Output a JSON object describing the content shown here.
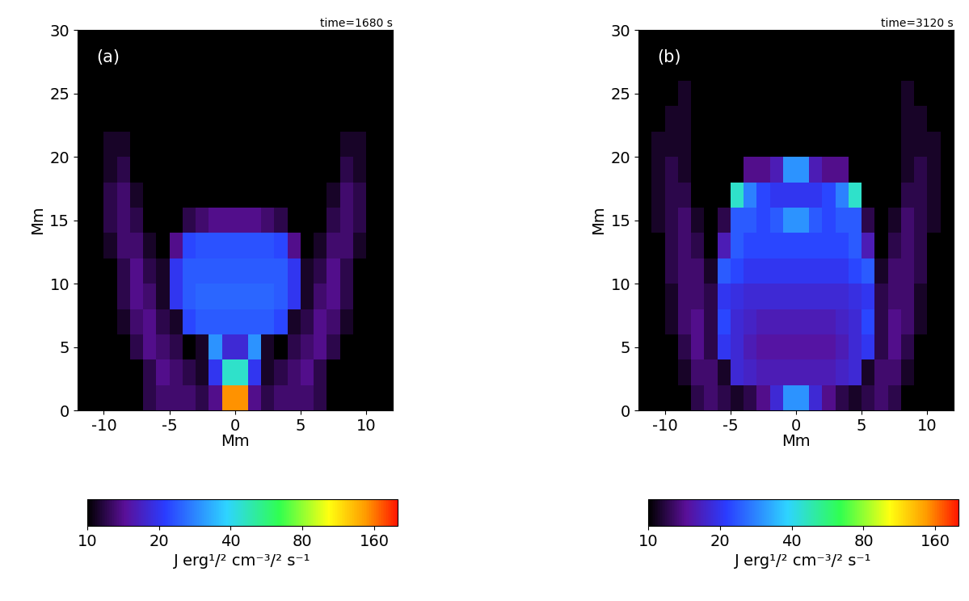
{
  "chart_data": [
    {
      "type": "heatmap",
      "title": "time=1680 s",
      "annotation": "(a)",
      "xlabel": "Mm",
      "ylabel": "Mm",
      "xlim": [
        -12,
        12
      ],
      "xticks": [
        -10,
        -5,
        0,
        5,
        10
      ],
      "ylim": [
        0,
        30
      ],
      "yticks": [
        0,
        5,
        10,
        15,
        20,
        25,
        30
      ],
      "x_edges": [
        -12,
        -11,
        -10,
        -9,
        -8,
        -7,
        -6,
        -5,
        -4,
        -3,
        -2,
        -1,
        0,
        1,
        2,
        3,
        4,
        5,
        6,
        7,
        8,
        9,
        10,
        11,
        12
      ],
      "y_edges": [
        0,
        2,
        4,
        6,
        8,
        10,
        12,
        14,
        16,
        18,
        20,
        22,
        24,
        26,
        28,
        30
      ],
      "cells": [
        [
          10,
          10,
          10,
          10,
          10,
          12,
          13,
          13,
          13,
          12,
          14,
          150,
          150,
          14,
          12,
          13,
          13,
          13,
          12,
          10,
          10,
          10,
          10,
          10
        ],
        [
          10,
          10,
          10,
          10,
          10,
          12,
          14,
          13,
          12,
          11,
          20,
          45,
          45,
          20,
          11,
          12,
          13,
          14,
          12,
          10,
          10,
          10,
          10,
          10
        ],
        [
          10,
          10,
          10,
          10,
          12,
          14,
          13,
          12,
          10,
          11,
          30,
          18,
          18,
          30,
          11,
          10,
          12,
          13,
          14,
          12,
          10,
          10,
          10,
          10
        ],
        [
          10,
          10,
          10,
          11,
          13,
          14,
          12,
          11,
          22,
          24,
          24,
          24,
          24,
          24,
          24,
          22,
          11,
          12,
          14,
          13,
          11,
          10,
          10,
          10
        ],
        [
          10,
          10,
          10,
          12,
          14,
          13,
          11,
          20,
          24,
          25,
          25,
          25,
          25,
          25,
          25,
          24,
          20,
          11,
          13,
          14,
          12,
          10,
          10,
          10
        ],
        [
          10,
          10,
          10,
          12,
          14,
          12,
          11,
          20,
          24,
          24,
          24,
          24,
          24,
          24,
          24,
          24,
          20,
          11,
          12,
          14,
          12,
          10,
          10,
          10
        ],
        [
          10,
          10,
          11,
          13,
          13,
          11,
          10,
          14,
          22,
          23,
          23,
          23,
          23,
          23,
          23,
          22,
          14,
          10,
          11,
          13,
          13,
          11,
          10,
          10
        ],
        [
          10,
          10,
          12,
          13,
          12,
          10,
          10,
          10,
          12,
          13,
          14,
          14,
          14,
          14,
          13,
          12,
          10,
          10,
          10,
          12,
          13,
          12,
          10,
          10
        ],
        [
          10,
          10,
          12,
          13,
          11,
          10,
          10,
          10,
          10,
          10,
          10,
          10,
          10,
          10,
          10,
          10,
          10,
          10,
          10,
          11,
          13,
          12,
          10,
          10
        ],
        [
          10,
          10,
          11,
          12,
          10,
          10,
          10,
          10,
          10,
          10,
          10,
          10,
          10,
          10,
          10,
          10,
          10,
          10,
          10,
          10,
          12,
          11,
          10,
          10
        ],
        [
          10,
          10,
          11,
          11,
          10,
          10,
          10,
          10,
          10,
          10,
          10,
          10,
          10,
          10,
          10,
          10,
          10,
          10,
          10,
          10,
          11,
          11,
          10,
          10
        ],
        [
          10,
          10,
          10,
          10,
          10,
          10,
          10,
          10,
          10,
          10,
          10,
          10,
          10,
          10,
          10,
          10,
          10,
          10,
          10,
          10,
          10,
          10,
          10,
          10
        ],
        [
          10,
          10,
          10,
          10,
          10,
          10,
          10,
          10,
          10,
          10,
          10,
          10,
          10,
          10,
          10,
          10,
          10,
          10,
          10,
          10,
          10,
          10,
          10,
          10
        ],
        [
          10,
          10,
          10,
          10,
          10,
          10,
          10,
          10,
          10,
          10,
          10,
          10,
          10,
          10,
          10,
          10,
          10,
          10,
          10,
          10,
          10,
          10,
          10,
          10
        ],
        [
          10,
          10,
          10,
          10,
          10,
          10,
          10,
          10,
          10,
          10,
          10,
          10,
          10,
          10,
          10,
          10,
          10,
          10,
          10,
          10,
          10,
          10,
          10,
          10
        ]
      ],
      "colorbar": {
        "range": [
          10,
          200
        ],
        "ticks": [
          10,
          20,
          40,
          80,
          160
        ],
        "log": true,
        "label": "J erg¹/² cm⁻³/² s⁻¹"
      }
    },
    {
      "type": "heatmap",
      "title": "time=3120 s",
      "annotation": "(b)",
      "xlabel": "Mm",
      "ylabel": "Mm",
      "xlim": [
        -12,
        12
      ],
      "xticks": [
        -10,
        -5,
        0,
        5,
        10
      ],
      "ylim": [
        0,
        30
      ],
      "yticks": [
        0,
        5,
        10,
        15,
        20,
        25,
        30
      ],
      "x_edges": [
        -12,
        -11,
        -10,
        -9,
        -8,
        -7,
        -6,
        -5,
        -4,
        -3,
        -2,
        -1,
        0,
        1,
        2,
        3,
        4,
        5,
        6,
        7,
        8,
        9,
        10,
        11,
        12
      ],
      "y_edges": [
        0,
        2,
        4,
        6,
        8,
        10,
        12,
        14,
        16,
        18,
        20,
        22,
        24,
        26,
        28,
        30
      ],
      "cells": [
        [
          10,
          10,
          10,
          10,
          12,
          13,
          12,
          11,
          12,
          14,
          18,
          30,
          30,
          18,
          14,
          12,
          11,
          12,
          13,
          12,
          10,
          10,
          10,
          10
        ],
        [
          10,
          10,
          10,
          11,
          13,
          13,
          11,
          18,
          17,
          16,
          16,
          16,
          16,
          16,
          16,
          17,
          18,
          11,
          13,
          13,
          11,
          10,
          10,
          10
        ],
        [
          10,
          10,
          10,
          12,
          14,
          12,
          20,
          18,
          16,
          15,
          15,
          15,
          15,
          15,
          15,
          16,
          18,
          20,
          12,
          14,
          12,
          10,
          10,
          10
        ],
        [
          10,
          10,
          11,
          13,
          14,
          12,
          22,
          18,
          17,
          16,
          16,
          16,
          16,
          16,
          16,
          17,
          18,
          22,
          12,
          14,
          13,
          11,
          10,
          10
        ],
        [
          10,
          10,
          11,
          13,
          13,
          12,
          20,
          19,
          18,
          18,
          18,
          18,
          18,
          18,
          18,
          18,
          19,
          20,
          12,
          13,
          13,
          11,
          10,
          10
        ],
        [
          10,
          10,
          12,
          13,
          13,
          11,
          24,
          22,
          20,
          20,
          20,
          20,
          20,
          20,
          20,
          20,
          22,
          24,
          11,
          13,
          13,
          12,
          10,
          10
        ],
        [
          10,
          10,
          12,
          13,
          12,
          10,
          16,
          24,
          22,
          22,
          22,
          22,
          22,
          22,
          22,
          22,
          24,
          16,
          10,
          12,
          13,
          12,
          10,
          10
        ],
        [
          10,
          11,
          12,
          13,
          11,
          10,
          12,
          24,
          24,
          22,
          24,
          30,
          30,
          24,
          22,
          24,
          24,
          12,
          10,
          11,
          13,
          12,
          11,
          10
        ],
        [
          10,
          11,
          12,
          12,
          10,
          10,
          10,
          45,
          28,
          22,
          20,
          20,
          20,
          20,
          22,
          28,
          45,
          10,
          10,
          10,
          12,
          12,
          11,
          10
        ],
        [
          10,
          11,
          12,
          11,
          10,
          10,
          10,
          10,
          14,
          14,
          16,
          30,
          30,
          16,
          14,
          14,
          10,
          10,
          10,
          10,
          11,
          12,
          11,
          10
        ],
        [
          10,
          11,
          11,
          11,
          10,
          10,
          10,
          10,
          10,
          10,
          10,
          10,
          10,
          10,
          10,
          10,
          10,
          10,
          10,
          10,
          11,
          11,
          11,
          10
        ],
        [
          10,
          10,
          11,
          11,
          10,
          10,
          10,
          10,
          10,
          10,
          10,
          10,
          10,
          10,
          10,
          10,
          10,
          10,
          10,
          10,
          11,
          11,
          10,
          10
        ],
        [
          10,
          10,
          10,
          11,
          10,
          10,
          10,
          10,
          10,
          10,
          10,
          10,
          10,
          10,
          10,
          10,
          10,
          10,
          10,
          10,
          11,
          10,
          10,
          10
        ],
        [
          10,
          10,
          10,
          10,
          10,
          10,
          10,
          10,
          10,
          10,
          10,
          10,
          10,
          10,
          10,
          10,
          10,
          10,
          10,
          10,
          10,
          10,
          10,
          10
        ],
        [
          10,
          10,
          10,
          10,
          10,
          10,
          10,
          10,
          10,
          10,
          10,
          10,
          10,
          10,
          10,
          10,
          10,
          10,
          10,
          10,
          10,
          10,
          10,
          10
        ]
      ],
      "colorbar": {
        "range": [
          10,
          200
        ],
        "ticks": [
          10,
          20,
          40,
          80,
          160
        ],
        "log": true,
        "label": "J erg¹/² cm⁻³/² s⁻¹"
      }
    }
  ]
}
